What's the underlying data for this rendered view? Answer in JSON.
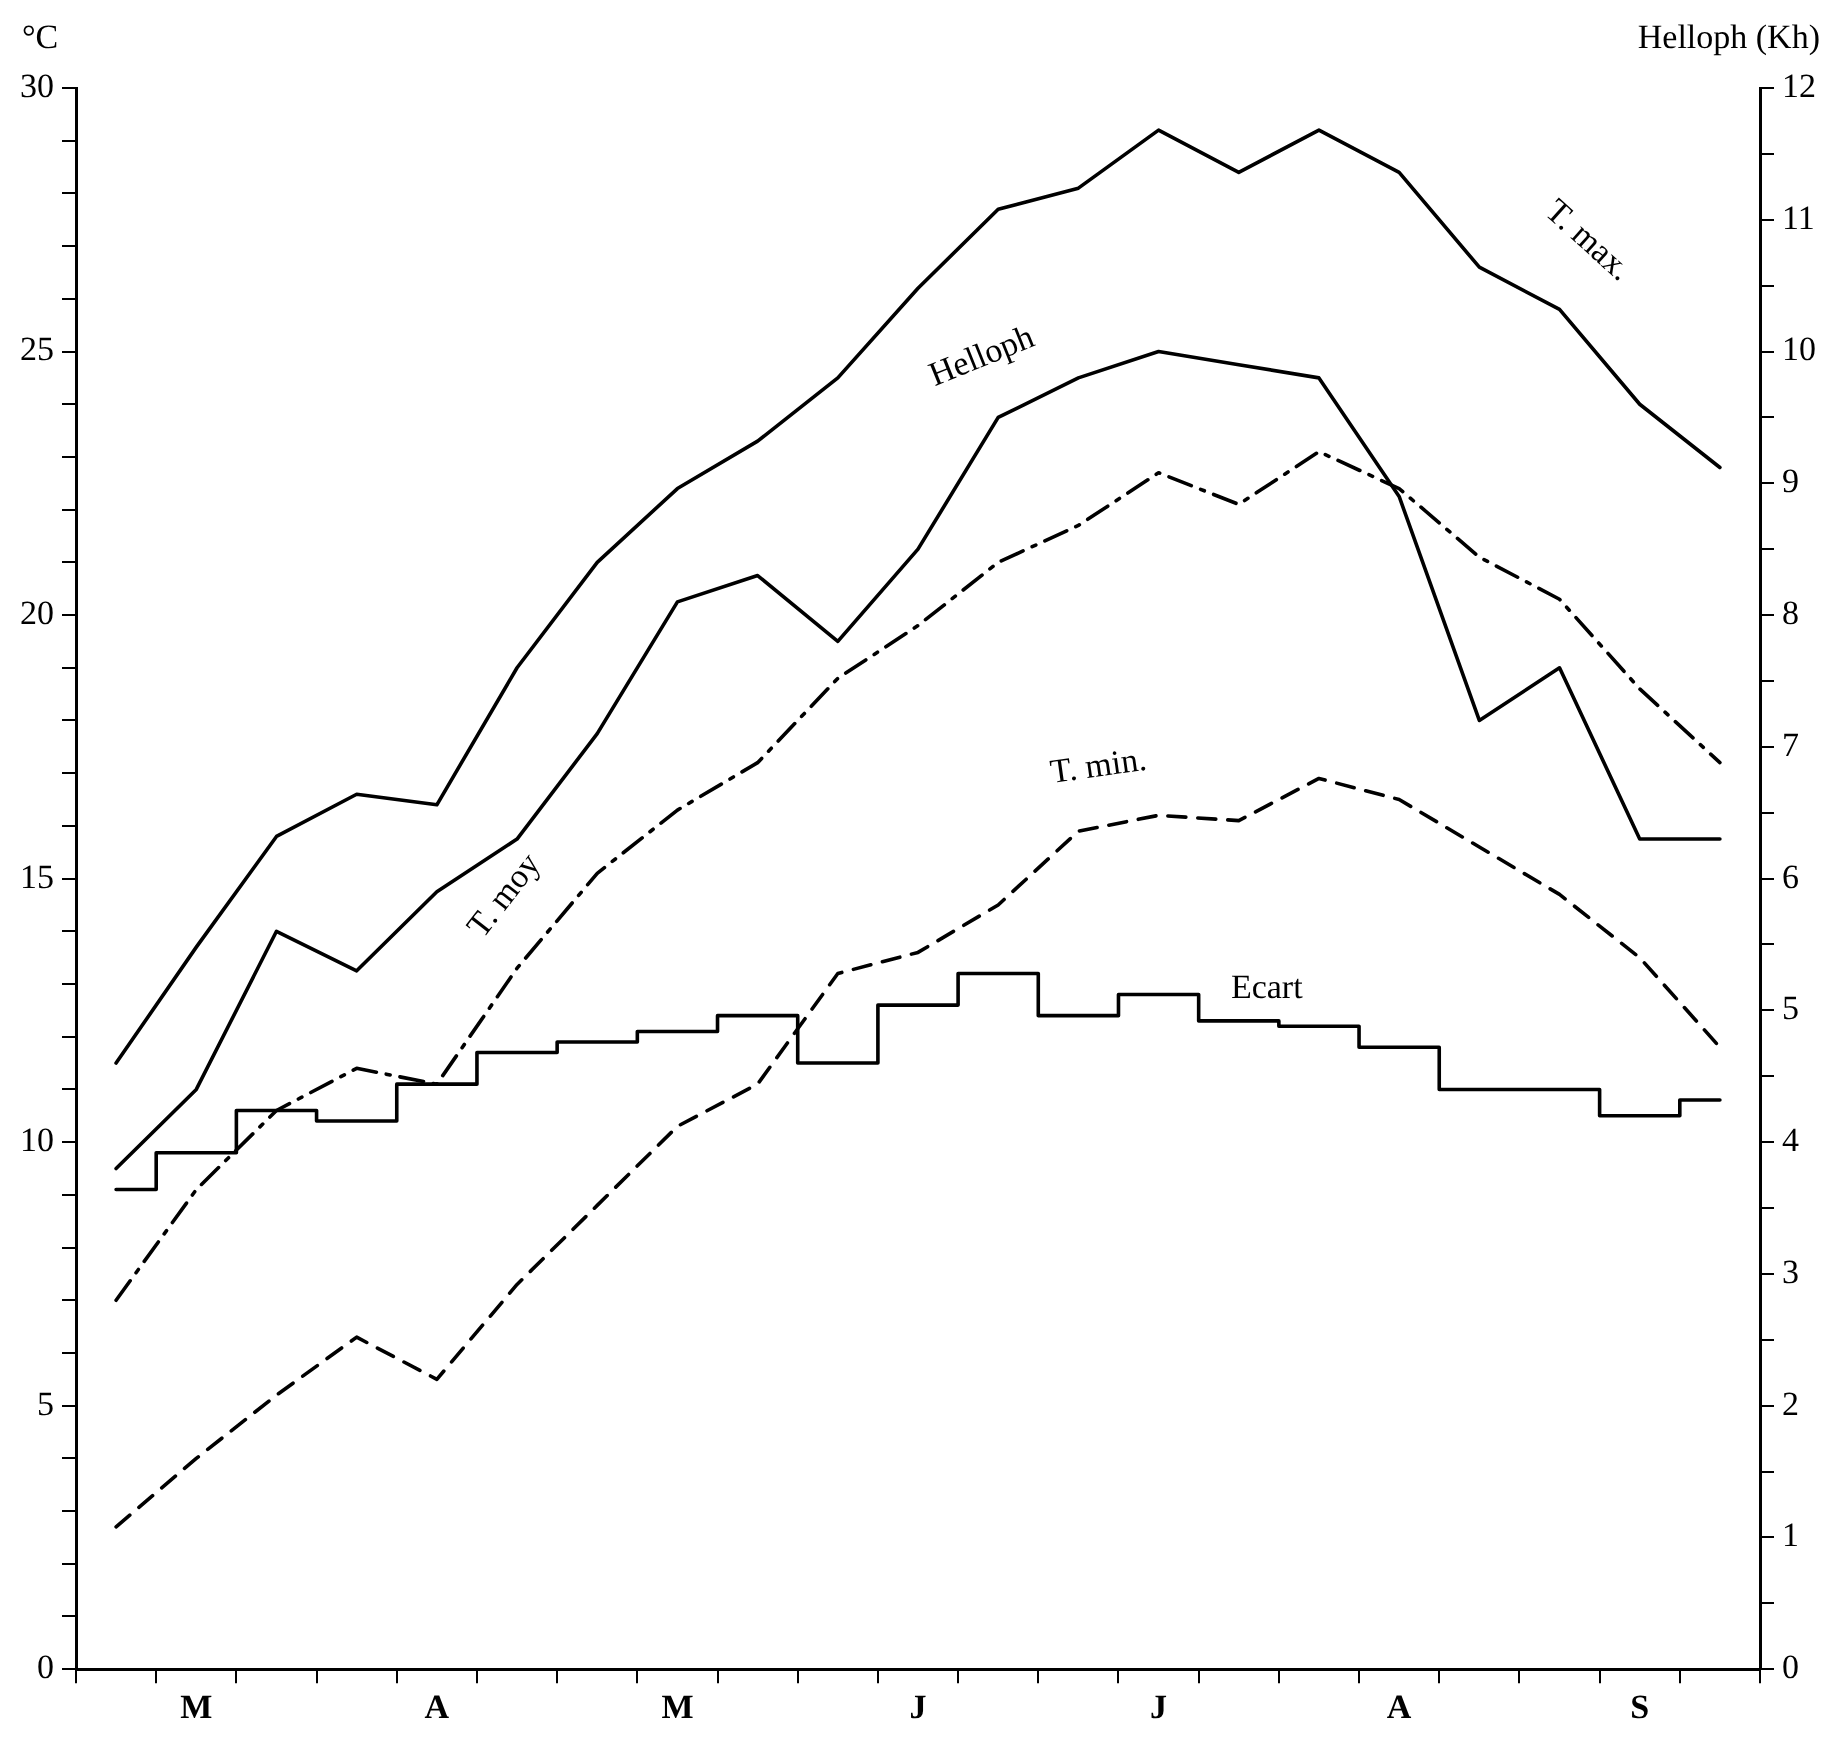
{
  "chart_data": {
    "type": "line",
    "ylabel": "°C",
    "y2label": "Helloph (Kh)",
    "categories": [
      null,
      "M",
      null,
      null,
      "A",
      null,
      null,
      "M",
      null,
      null,
      "J",
      null,
      null,
      "J",
      null,
      null,
      "A",
      null,
      null,
      "S",
      null
    ],
    "series": [
      {
        "name": "T. max.",
        "color": "#000000",
        "line_style": "solid",
        "values": [
          11.5,
          13.7,
          15.8,
          16.6,
          16.4,
          19.0,
          21.0,
          22.4,
          23.3,
          24.5,
          26.2,
          27.7,
          28.1,
          29.2,
          28.4,
          29.2,
          28.4,
          26.6,
          25.8,
          24.0,
          22.8
        ]
      },
      {
        "name": "Helloph",
        "color": "#000000",
        "line_style": "solid",
        "axis": "y2",
        "values": [
          3.8,
          4.4,
          5.6,
          5.3,
          5.9,
          6.3,
          7.1,
          8.1,
          8.3,
          7.8,
          8.5,
          9.5,
          9.8,
          10.0,
          9.9,
          9.8,
          8.9,
          7.2,
          7.6,
          6.3,
          6.3
        ]
      },
      {
        "name": "T. moy",
        "color": "#000000",
        "line_style": "dashdot",
        "values": [
          7.0,
          9.1,
          10.6,
          11.4,
          11.1,
          13.3,
          15.1,
          16.3,
          17.2,
          18.8,
          19.8,
          21.0,
          21.7,
          22.7,
          22.1,
          23.1,
          22.4,
          21.1,
          20.3,
          18.6,
          17.2
        ]
      },
      {
        "name": "T. min.",
        "color": "#000000",
        "line_style": "dashed",
        "values": [
          2.7,
          4.0,
          5.2,
          6.3,
          5.5,
          7.3,
          8.8,
          10.3,
          11.1,
          13.2,
          13.6,
          14.5,
          15.9,
          16.2,
          16.1,
          16.9,
          16.5,
          15.6,
          14.7,
          13.5,
          11.8
        ]
      },
      {
        "name": "Ecart",
        "type": "step",
        "color": "#000000",
        "line_style": "solid",
        "values": [
          9.1,
          9.8,
          10.6,
          10.4,
          11.1,
          11.7,
          11.9,
          12.1,
          12.4,
          11.5,
          12.6,
          13.2,
          12.4,
          12.8,
          12.3,
          12.2,
          11.8,
          11.0,
          11.0,
          10.5,
          10.8
        ]
      }
    ],
    "ylim": [
      0,
      30
    ],
    "yticks": [
      0,
      {
        "value": 1,
        "label": null
      },
      {
        "value": 2,
        "label": null
      },
      {
        "value": 3,
        "label": null
      },
      {
        "value": 4,
        "label": null
      },
      5,
      {
        "value": 6,
        "label": null
      },
      {
        "value": 7,
        "label": null
      },
      {
        "value": 8,
        "label": null
      },
      {
        "value": 9,
        "label": null
      },
      10,
      {
        "value": 11,
        "label": null
      },
      {
        "value": 12,
        "label": null
      },
      {
        "value": 13,
        "label": null
      },
      {
        "value": 14,
        "label": null
      },
      15,
      {
        "value": 16,
        "label": null
      },
      {
        "value": 17,
        "label": null
      },
      {
        "value": 18,
        "label": null
      },
      {
        "value": 19,
        "label": null
      },
      20,
      {
        "value": 21,
        "label": null
      },
      {
        "value": 22,
        "label": null
      },
      {
        "value": 23,
        "label": null
      },
      {
        "value": 24,
        "label": null
      },
      25,
      {
        "value": 26,
        "label": null
      },
      {
        "value": 27,
        "label": null
      },
      {
        "value": 28,
        "label": null
      },
      {
        "value": 29,
        "label": null
      },
      30
    ],
    "y2lim": [
      0,
      12
    ],
    "y2ticks": [
      0,
      {
        "value": 0.5,
        "label": null
      },
      1,
      {
        "value": 1.5,
        "label": null
      },
      2,
      {
        "value": 2.5,
        "label": null
      },
      3,
      {
        "value": 3.5,
        "label": null
      },
      4,
      {
        "value": 4.5,
        "label": null
      },
      5,
      {
        "value": 5.5,
        "label": null
      },
      6,
      {
        "value": 6.5,
        "label": null
      },
      7,
      {
        "value": 7.5,
        "label": null
      },
      8,
      {
        "value": 8.5,
        "label": null
      },
      9,
      {
        "value": 9.5,
        "label": null
      },
      10,
      {
        "value": 10.5,
        "label": null
      },
      11,
      {
        "value": 11.5,
        "label": null
      },
      12
    ],
    "grid": false,
    "legend": false,
    "marker": "none"
  }
}
